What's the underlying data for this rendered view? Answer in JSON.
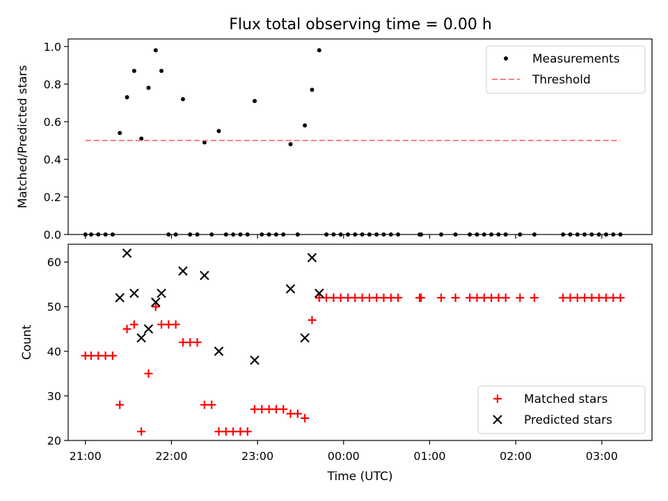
{
  "title": "Flux total observing time = 0.00 h",
  "chart_data": [
    {
      "type": "scatter",
      "ylabel": "Matched/Predicted stars",
      "xlabel": "",
      "xlim": [
        "20:48",
        "27:35"
      ],
      "ylim": [
        0,
        1.04
      ],
      "x_unit": "time of day (UTC), hours past 00:00 of the first day",
      "yticks": [
        "0.0",
        "0.2",
        "0.4",
        "0.6",
        "0.8",
        "1.0"
      ],
      "grid": false,
      "legend": "top-right",
      "series": [
        {
          "name": "Measurements",
          "marker": "dot",
          "color": "#000000",
          "x": [
            "21:00",
            "21:04",
            "21:09",
            "21:14",
            "21:19",
            "21:24",
            "21:29",
            "21:34",
            "21:39",
            "21:44",
            "21:49",
            "21:53",
            "21:58",
            "22:03",
            "22:08",
            "22:13",
            "22:18",
            "22:23",
            "22:28",
            "22:33",
            "22:38",
            "22:43",
            "22:48",
            "22:53",
            "22:58",
            "23:03",
            "23:08",
            "23:13",
            "23:18",
            "23:23",
            "23:28",
            "23:33",
            "23:38",
            "23:43",
            "23:48",
            "23:53",
            "23:58",
            "00:03",
            "00:08",
            "00:13",
            "00:18",
            "00:23",
            "00:28",
            "00:33",
            "00:38",
            "00:53",
            "00:54",
            "01:08",
            "01:18",
            "01:28",
            "01:33",
            "01:38",
            "01:43",
            "01:48",
            "01:53",
            "02:03",
            "02:13",
            "02:33",
            "02:38",
            "02:43",
            "02:48",
            "02:53",
            "02:58",
            "03:03",
            "03:08",
            "03:13"
          ],
          "y": [
            0,
            0,
            0,
            0,
            0,
            0.54,
            0.73,
            0.87,
            0.51,
            0.78,
            0.98,
            0.87,
            0,
            0,
            0.72,
            0,
            0,
            0.49,
            0,
            0.55,
            0,
            0,
            0,
            0,
            0.71,
            0,
            0,
            0,
            0,
            0.48,
            0,
            0.58,
            0.77,
            0.98,
            0,
            0,
            0,
            0,
            0,
            0,
            0,
            0,
            0,
            0,
            0,
            0,
            0,
            0,
            0,
            0,
            0,
            0,
            0,
            0,
            0,
            0,
            0,
            0,
            0,
            0,
            0,
            0,
            0,
            0,
            0,
            0
          ]
        },
        {
          "name": "Threshold",
          "style": "dashed",
          "color": "#ff7f7f",
          "x": [
            "21:00",
            "27:13"
          ],
          "y": [
            0.5,
            0.5
          ]
        }
      ]
    },
    {
      "type": "scatter",
      "ylabel": "Count",
      "xlabel": "Time (UTC)",
      "xlim": [
        "20:48",
        "27:35"
      ],
      "ylim": [
        20,
        64
      ],
      "x_unit": "time of day (UTC), hours past 00:00 of the first day",
      "yticks": [
        "20",
        "30",
        "40",
        "50",
        "60"
      ],
      "xticks": [
        {
          "t": "21:00",
          "label": "21:00"
        },
        {
          "t": "22:00",
          "label": "22:00"
        },
        {
          "t": "23:00",
          "label": "23:00"
        },
        {
          "t": "24:00",
          "label": "00:00"
        },
        {
          "t": "25:00",
          "label": "01:00"
        },
        {
          "t": "26:00",
          "label": "02:00"
        },
        {
          "t": "27:00",
          "label": "03:00"
        }
      ],
      "grid": false,
      "legend": "bottom-right",
      "series": [
        {
          "name": "Matched stars",
          "marker": "plus",
          "color": "#ff0000",
          "x": [
            "21:00",
            "21:04",
            "21:09",
            "21:14",
            "21:19",
            "21:24",
            "21:29",
            "21:34",
            "21:39",
            "21:44",
            "21:49",
            "21:53",
            "21:58",
            "22:03",
            "22:08",
            "22:13",
            "22:18",
            "22:23",
            "22:28",
            "22:33",
            "22:38",
            "22:43",
            "22:48",
            "22:53",
            "22:58",
            "23:03",
            "23:08",
            "23:13",
            "23:18",
            "23:23",
            "23:28",
            "23:33",
            "23:38",
            "23:43",
            "23:48",
            "23:53",
            "23:58",
            "00:03",
            "00:08",
            "00:13",
            "00:18",
            "00:23",
            "00:28",
            "00:33",
            "00:38",
            "00:53",
            "00:54",
            "01:08",
            "01:18",
            "01:28",
            "01:33",
            "01:38",
            "01:43",
            "01:48",
            "01:53",
            "02:03",
            "02:13",
            "02:33",
            "02:38",
            "02:43",
            "02:48",
            "02:53",
            "02:58",
            "03:03",
            "03:08",
            "03:13"
          ],
          "y": [
            39,
            39,
            39,
            39,
            39,
            28,
            45,
            46,
            22,
            35,
            50,
            46,
            46,
            46,
            42,
            42,
            42,
            28,
            28,
            22,
            22,
            22,
            22,
            22,
            27,
            27,
            27,
            27,
            27,
            26,
            26,
            25,
            47,
            52,
            52,
            52,
            52,
            52,
            52,
            52,
            52,
            52,
            52,
            52,
            52,
            52,
            52,
            52,
            52,
            52,
            52,
            52,
            52,
            52,
            52,
            52,
            52,
            52,
            52,
            52,
            52,
            52,
            52,
            52,
            52,
            52
          ]
        },
        {
          "name": "Predicted stars",
          "marker": "x",
          "color": "#000000",
          "x": [
            "21:24",
            "21:29",
            "21:34",
            "21:39",
            "21:44",
            "21:49",
            "21:53",
            "22:08",
            "22:23",
            "22:33",
            "22:58",
            "23:23",
            "23:33",
            "23:38",
            "23:43"
          ],
          "y": [
            52,
            62,
            53,
            43,
            45,
            51,
            53,
            58,
            57,
            40,
            38,
            54,
            43,
            61,
            53
          ]
        }
      ]
    }
  ]
}
